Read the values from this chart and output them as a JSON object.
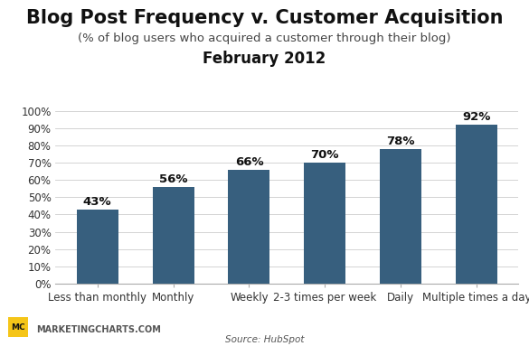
{
  "title": "Blog Post Frequency v. Customer Acquisition",
  "subtitle": "(% of blog users who acquired a customer through their blog)",
  "subtitle2": "February 2012",
  "source": "Source: HubSpot",
  "watermark": "MARKETINGCHARTS.COM",
  "categories": [
    "Less than monthly",
    "Monthly",
    "Weekly",
    "2-3 times per week",
    "Daily",
    "Multiple times a day"
  ],
  "values": [
    43,
    56,
    66,
    70,
    78,
    92
  ],
  "bar_color": "#375f7e",
  "background_color": "#ffffff",
  "ylim": [
    0,
    100
  ],
  "ytick_labels": [
    "0%",
    "10%",
    "20%",
    "30%",
    "40%",
    "50%",
    "60%",
    "70%",
    "80%",
    "90%",
    "100%"
  ],
  "ytick_values": [
    0,
    10,
    20,
    30,
    40,
    50,
    60,
    70,
    80,
    90,
    100
  ],
  "title_fontsize": 15,
  "subtitle_fontsize": 9.5,
  "subtitle2_fontsize": 12,
  "label_fontsize": 9.5,
  "tick_fontsize": 8.5,
  "source_fontsize": 7.5,
  "watermark_fontsize": 7,
  "badge_color": "#f5c518"
}
